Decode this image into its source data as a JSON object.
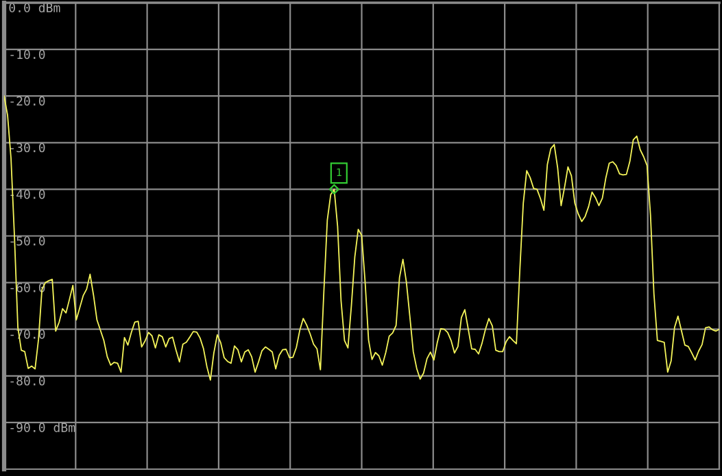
{
  "chart_data": {
    "type": "line",
    "categories": [
      null,
      null,
      null,
      null,
      null,
      null,
      null,
      null,
      null,
      null,
      null,
      null,
      null,
      null,
      null,
      null,
      null,
      null,
      null,
      null,
      null,
      null,
      null,
      null,
      null,
      null,
      null,
      null,
      null,
      null,
      null,
      null,
      null,
      null,
      null,
      null,
      null,
      null,
      null,
      null,
      null,
      null,
      null,
      null,
      null,
      null,
      null,
      null,
      null,
      null,
      null,
      null,
      null,
      null,
      null,
      null,
      null,
      null,
      null,
      null,
      null,
      null,
      null,
      null,
      null,
      null,
      null,
      null,
      null,
      null,
      null,
      null,
      null,
      null,
      null,
      null,
      null,
      null,
      null,
      null,
      null,
      null,
      null,
      null,
      null,
      null,
      null,
      null,
      null,
      null,
      null,
      null,
      null,
      null,
      null,
      null,
      null,
      null,
      null,
      null,
      null,
      null,
      null,
      null,
      null,
      null,
      null,
      null,
      null,
      null,
      null,
      null,
      null,
      null,
      null,
      null,
      null,
      null,
      null,
      null,
      null,
      null,
      null,
      null,
      null,
      null,
      null,
      null,
      null,
      null,
      null,
      null,
      null,
      null,
      null,
      null,
      null,
      null,
      null,
      null,
      null,
      null,
      null,
      null,
      null,
      null,
      null,
      null,
      null,
      null,
      null,
      null,
      null,
      null,
      null,
      null,
      null,
      null,
      null,
      null,
      null,
      null,
      null,
      null,
      null,
      null,
      null,
      null,
      null,
      null,
      null,
      null,
      null,
      null,
      null,
      null,
      null,
      null,
      null,
      null,
      null,
      null,
      null,
      null,
      null,
      null,
      null,
      null,
      null,
      null,
      null,
      null,
      null,
      null,
      null,
      null,
      null,
      null,
      null,
      null,
      null,
      null,
      null,
      null,
      null,
      null,
      null,
      null,
      null
    ],
    "series": [
      {
        "color": "#f5f55a",
        "values": [
          -20,
          -24.1,
          -33.3,
          -50,
          -69.6,
          -74.5,
          -74.8,
          -78.4,
          -77.9,
          -78.5,
          -72.2,
          -61.5,
          -60,
          -59.6,
          -59.3,
          -70.4,
          -68.5,
          -65.6,
          -66.5,
          -63.6,
          -60.6,
          -68,
          -65.4,
          -62.8,
          -61.4,
          -58.2,
          -62.7,
          -68,
          -70.2,
          -72.4,
          -75.9,
          -77.7,
          -77.1,
          -77.3,
          -79.2,
          -71.8,
          -73.4,
          -70.7,
          -68.5,
          -68.3,
          -73.8,
          -72.5,
          -70.7,
          -71.4,
          -74,
          -71.2,
          -71.6,
          -73.8,
          -72,
          -71.7,
          -74.5,
          -77,
          -73.2,
          -72.8,
          -71.7,
          -70.5,
          -70.6,
          -71.9,
          -74.2,
          -78.1,
          -80.9,
          -75.1,
          -71.2,
          -72.9,
          -76.1,
          -76.9,
          -77.3,
          -73.6,
          -74.4,
          -77,
          -74.9,
          -74.4,
          -75.9,
          -79.2,
          -77,
          -74.6,
          -73.8,
          -74.3,
          -74.9,
          -78.5,
          -75.6,
          -74.4,
          -74.3,
          -76.1,
          -76,
          -73.9,
          -70.2,
          -67.7,
          -69.1,
          -71,
          -73.2,
          -74.2,
          -78.7,
          -61.9,
          -46.6,
          -41.1,
          -40,
          -48,
          -63.9,
          -72.4,
          -74,
          -65,
          -54.5,
          -48.6,
          -49.9,
          -59.9,
          -72.3,
          -76.5,
          -75,
          -75.7,
          -77.7,
          -75,
          -71.5,
          -70.8,
          -69.2,
          -58.9,
          -55,
          -59.9,
          -67.2,
          -74.8,
          -78.4,
          -80.7,
          -79.4,
          -76.3,
          -74.9,
          -76.6,
          -72.8,
          -69.9,
          -70,
          -70.7,
          -72.4,
          -75.1,
          -73.7,
          -67.5,
          -65.8,
          -70,
          -74.2,
          -74.3,
          -75.3,
          -73,
          -70,
          -67.7,
          -69.3,
          -74.5,
          -74.8,
          -74.8,
          -72.7,
          -71.6,
          -72.4,
          -73.1,
          -57.3,
          -43,
          -36,
          -37.5,
          -39.8,
          -40,
          -42,
          -44.5,
          -34.7,
          -31.3,
          -30.4,
          -35.4,
          -43.5,
          -39.6,
          -35.2,
          -37.1,
          -43,
          -45.3,
          -46.9,
          -45.8,
          -43.7,
          -40.6,
          -41.8,
          -43.5,
          -41.9,
          -37.6,
          -34.4,
          -34.1,
          -34.9,
          -36.7,
          -36.9,
          -36.8,
          -34,
          -29.4,
          -28.6,
          -31.5,
          -33,
          -34.9,
          -45.5,
          -62.4,
          -72.4,
          -72.6,
          -72.8,
          -79.2,
          -76.8,
          -69.6,
          -67.2,
          -70.3,
          -73.4,
          -73.7,
          -75.1,
          -76.6,
          -74.7,
          -73.3,
          -69.7,
          -69.5,
          -70.1,
          -70.4,
          -70
        ]
      },
      {
        "type": "scatter",
        "name": "1",
        "color": "#33cc33",
        "marker": "diamond",
        "values": [
          null,
          null,
          null,
          null,
          null,
          null,
          null,
          null,
          null,
          null,
          null,
          null,
          null,
          null,
          null,
          null,
          null,
          null,
          null,
          null,
          null,
          null,
          null,
          null,
          null,
          null,
          null,
          null,
          null,
          null,
          null,
          null,
          null,
          null,
          null,
          null,
          null,
          null,
          null,
          null,
          null,
          null,
          null,
          null,
          null,
          null,
          null,
          null,
          null,
          null,
          null,
          null,
          null,
          null,
          null,
          null,
          null,
          null,
          null,
          null,
          null,
          null,
          null,
          null,
          null,
          null,
          null,
          null,
          null,
          null,
          null,
          null,
          null,
          null,
          null,
          null,
          null,
          null,
          null,
          null,
          null,
          null,
          null,
          null,
          null,
          null,
          null,
          null,
          null,
          null,
          null,
          null,
          null,
          null,
          null,
          null,
          -40,
          null,
          null,
          null,
          null,
          null,
          null,
          null,
          null,
          null,
          null,
          null,
          null,
          null,
          null,
          null,
          null,
          null,
          null,
          null,
          null,
          null,
          null,
          null,
          null,
          null,
          null,
          null,
          null,
          null,
          null,
          null,
          null,
          null,
          null,
          null,
          null,
          null,
          null,
          null,
          null,
          null,
          null,
          null,
          null,
          null,
          null,
          null,
          null,
          null,
          null,
          null,
          null,
          null,
          null,
          null,
          null,
          null,
          null,
          null,
          null,
          null,
          null,
          null,
          null,
          null,
          null,
          null,
          null,
          null,
          null,
          null,
          null,
          null,
          null,
          null,
          null,
          null,
          null,
          null,
          null,
          null,
          null,
          null,
          null,
          null,
          null,
          null,
          null,
          null,
          null,
          null,
          null,
          null,
          null,
          null,
          null,
          null,
          null,
          null,
          null,
          null,
          null,
          null,
          null,
          null,
          null,
          null,
          null,
          null,
          null,
          null,
          null
        ]
      }
    ],
    "ylim": [
      -100,
      0
    ],
    "yticks": [
      {
        "value": 0,
        "label": "0.0 dBm"
      },
      {
        "value": -10,
        "label": "-10.0"
      },
      {
        "value": -20,
        "label": "-20.0"
      },
      {
        "value": -30,
        "label": "-30.0"
      },
      {
        "value": -40,
        "label": "-40.0"
      },
      {
        "value": -50,
        "label": "-50.0"
      },
      {
        "value": -60,
        "label": "-60.0"
      },
      {
        "value": -70,
        "label": "-70.0"
      },
      {
        "value": -80,
        "label": "-80.0"
      },
      {
        "value": -90,
        "label": "-90.0 dBm"
      }
    ],
    "grid": true,
    "tick_labels": "y",
    "marker": "none",
    "line_style": "solid"
  }
}
